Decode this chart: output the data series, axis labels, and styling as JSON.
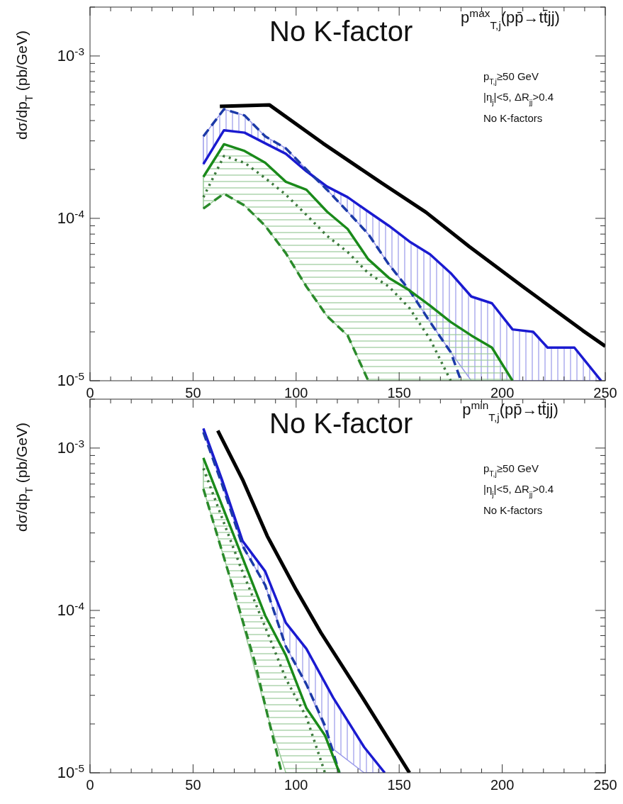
{
  "chart_data": [
    {
      "type": "line",
      "title": "p$^{max}$$_{T,j}$(pp̄→tt̄jj)",
      "ylabel": "dσ/dp$_{T}$ (pb/GeV)",
      "log": true,
      "grid": false,
      "annotations": [
        "No K-factor",
        "p$_{T,j}$≥50 GeV",
        "|η$_{j}$|<5, ΔR$_{jj}$>0.4",
        "No K-factors"
      ],
      "xlim": [
        0,
        250
      ],
      "ylim": [
        1e-05,
        0.002
      ],
      "xticks": [
        0,
        {
          "value": 10,
          "label": null
        },
        {
          "value": 20,
          "label": null
        },
        {
          "value": 30,
          "label": null
        },
        {
          "value": 40,
          "label": null
        },
        50,
        {
          "value": 60,
          "label": null
        },
        {
          "value": 70,
          "label": null
        },
        {
          "value": 80,
          "label": null
        },
        {
          "value": 90,
          "label": null
        },
        100,
        {
          "value": 110,
          "label": null
        },
        {
          "value": 120,
          "label": null
        },
        {
          "value": 130,
          "label": null
        },
        {
          "value": 140,
          "label": null
        },
        150,
        {
          "value": 160,
          "label": null
        },
        {
          "value": 170,
          "label": null
        },
        {
          "value": 180,
          "label": null
        },
        {
          "value": 190,
          "label": null
        },
        200,
        {
          "value": 210,
          "label": null
        },
        {
          "value": 220,
          "label": null
        },
        {
          "value": 230,
          "label": null
        },
        {
          "value": 240,
          "label": null
        },
        250
      ],
      "yticks": [
        {
          "value": 1e-05,
          "label": "10$^{-5}$"
        },
        {
          "value": 2e-05,
          "label": null
        },
        {
          "value": 3e-05,
          "label": null
        },
        {
          "value": 4e-05,
          "label": null
        },
        {
          "value": 5e-05,
          "label": null
        },
        {
          "value": 6e-05,
          "label": null
        },
        {
          "value": 7e-05,
          "label": null
        },
        {
          "value": 8e-05,
          "label": null
        },
        {
          "value": 9e-05,
          "label": null
        },
        {
          "value": 0.0001,
          "label": "10$^{-4}$"
        },
        {
          "value": 0.0002,
          "label": null
        },
        {
          "value": 0.0003,
          "label": null
        },
        {
          "value": 0.0004,
          "label": null
        },
        {
          "value": 0.0005,
          "label": null
        },
        {
          "value": 0.0006,
          "label": null
        },
        {
          "value": 0.0007,
          "label": null
        },
        {
          "value": 0.0008,
          "label": null
        },
        {
          "value": 0.0009,
          "label": null
        },
        {
          "value": 0.001,
          "label": "10$^{-3}$"
        },
        {
          "value": 0.002,
          "label": null
        }
      ],
      "series": [
        {
          "color": "#000000",
          "line_style": "solid",
          "x": [
            63,
            87,
            113,
            140,
            163,
            184,
            210,
            239,
            250
          ],
          "values": [
            0.00049,
            0.0005,
            0.00029,
            0.00017,
            0.000109,
            6.7e-05,
            3.8e-05,
            2.04e-05,
            1.63e-05
          ]
        },
        {
          "color": "#1a1ad0",
          "line_style": "solid",
          "x": [
            55,
            65,
            75,
            85,
            95,
            105,
            115,
            125,
            135,
            145,
            155,
            165,
            175,
            185,
            195,
            205,
            215,
            222,
            235,
            248
          ],
          "values": [
            0.000216,
            0.000349,
            0.000337,
            0.00029,
            0.00025,
            0.000195,
            0.000157,
            0.000135,
            0.00011,
            9e-05,
            7.2e-05,
            6e-05,
            4.6e-05,
            3.3e-05,
            3e-05,
            2.07e-05,
            2e-05,
            1.6e-05,
            1.6e-05,
            1e-05
          ],
          "lower": [
            0.000216,
            0.000349,
            0.000337,
            0.00029,
            0.00025,
            0.000195,
            0.00015,
            0.00011,
            8e-05,
            5.2e-05,
            3.6e-05,
            2.3e-05,
            1.5e-05,
            1e-05,
            1e-05,
            1e-05,
            1e-05,
            1e-05,
            1e-05,
            1e-05
          ],
          "upper": [
            0.00032,
            0.00047,
            0.00043,
            0.00032,
            0.00027,
            0.0002,
            0.000157,
            0.000135,
            0.00011,
            9e-05,
            7.2e-05,
            6e-05,
            4.6e-05,
            3.3e-05,
            3e-05,
            2.07e-05,
            2e-05,
            1.6e-05,
            1.6e-05,
            1e-05
          ]
        },
        {
          "color": "#1c3aa8",
          "line_style": "dashed",
          "x": [
            55,
            65,
            75,
            85,
            95,
            105,
            115,
            125,
            135,
            145,
            155,
            165,
            175,
            180
          ],
          "values": [
            0.00032,
            0.00047,
            0.00043,
            0.00032,
            0.00027,
            0.0002,
            0.00015,
            0.00011,
            8e-05,
            5.2e-05,
            3.6e-05,
            2.3e-05,
            1.5e-05,
            1e-05
          ]
        },
        {
          "color": "#1a8a1a",
          "line_style": "solid",
          "x": [
            55,
            65,
            75,
            85,
            95,
            105,
            115,
            125,
            135,
            145,
            155,
            165,
            175,
            185,
            195,
            205
          ],
          "values": [
            0.00018,
            0.000286,
            0.00026,
            0.00022,
            0.000168,
            0.00015,
            0.00011,
            8.6e-05,
            5.6e-05,
            4.3e-05,
            3.6e-05,
            2.9e-05,
            2.3e-05,
            1.9e-05,
            1.6e-05,
            1e-05
          ],
          "lower": [
            0.000115,
            0.000142,
            0.00012,
            9e-05,
            6.1e-05,
            3.8e-05,
            2.5e-05,
            1.9e-05,
            1e-05,
            1e-05,
            1e-05,
            1e-05,
            1e-05,
            1e-05,
            1e-05,
            1e-05
          ],
          "upper": [
            0.00018,
            0.000286,
            0.00026,
            0.00022,
            0.000168,
            0.00015,
            0.00011,
            8.6e-05,
            5.6e-05,
            4.3e-05,
            3.6e-05,
            2.9e-05,
            2.3e-05,
            1.9e-05,
            1.6e-05,
            1e-05
          ]
        },
        {
          "color": "#3d7a3d",
          "line_style": "dotted",
          "x": [
            55,
            65,
            75,
            85,
            95,
            105,
            115,
            125,
            135,
            145,
            155,
            165,
            175
          ],
          "values": [
            0.000135,
            0.000242,
            0.00022,
            0.000177,
            0.00014,
            0.000105,
            7.8e-05,
            6.2e-05,
            4.6e-05,
            3.8e-05,
            2.8e-05,
            1.8e-05,
            1e-05
          ]
        },
        {
          "color": "#2a8a2a",
          "line_style": "dashed",
          "x": [
            55,
            65,
            75,
            85,
            95,
            105,
            115,
            125,
            135
          ],
          "values": [
            0.000115,
            0.000142,
            0.00012,
            9e-05,
            6.1e-05,
            3.8e-05,
            2.5e-05,
            1.9e-05,
            1e-05
          ]
        }
      ]
    },
    {
      "type": "line",
      "title": "p$^{min}$$_{T,j}$(pp̄→tt̄jj)",
      "ylabel": "dσ/dp$_{T}$ (pb/GeV)",
      "log": true,
      "grid": false,
      "annotations": [
        "No K-factor",
        "p$_{T,j}$≥50 GeV",
        "|η$_{j}$|<5, ΔR$_{jj}$>0.4",
        "No K-factors"
      ],
      "xlim": [
        0,
        250
      ],
      "ylim": [
        1e-05,
        0.002
      ],
      "xticks": [
        0,
        {
          "value": 10,
          "label": null
        },
        {
          "value": 20,
          "label": null
        },
        {
          "value": 30,
          "label": null
        },
        {
          "value": 40,
          "label": null
        },
        50,
        {
          "value": 60,
          "label": null
        },
        {
          "value": 70,
          "label": null
        },
        {
          "value": 80,
          "label": null
        },
        {
          "value": 90,
          "label": null
        },
        100,
        {
          "value": 110,
          "label": null
        },
        {
          "value": 120,
          "label": null
        },
        {
          "value": 130,
          "label": null
        },
        {
          "value": 140,
          "label": null
        },
        150,
        {
          "value": 160,
          "label": null
        },
        {
          "value": 170,
          "label": null
        },
        {
          "value": 180,
          "label": null
        },
        {
          "value": 190,
          "label": null
        },
        200,
        {
          "value": 210,
          "label": null
        },
        {
          "value": 220,
          "label": null
        },
        {
          "value": 230,
          "label": null
        },
        {
          "value": 240,
          "label": null
        },
        250
      ],
      "yticks": [
        {
          "value": 1e-05,
          "label": "10$^{-5}$"
        },
        {
          "value": 2e-05,
          "label": null
        },
        {
          "value": 3e-05,
          "label": null
        },
        {
          "value": 4e-05,
          "label": null
        },
        {
          "value": 5e-05,
          "label": null
        },
        {
          "value": 6e-05,
          "label": null
        },
        {
          "value": 7e-05,
          "label": null
        },
        {
          "value": 8e-05,
          "label": null
        },
        {
          "value": 9e-05,
          "label": null
        },
        {
          "value": 0.0001,
          "label": "10$^{-4}$"
        },
        {
          "value": 0.0002,
          "label": null
        },
        {
          "value": 0.0003,
          "label": null
        },
        {
          "value": 0.0004,
          "label": null
        },
        {
          "value": 0.0005,
          "label": null
        },
        {
          "value": 0.0006,
          "label": null
        },
        {
          "value": 0.0007,
          "label": null
        },
        {
          "value": 0.0008,
          "label": null
        },
        {
          "value": 0.0009,
          "label": null
        },
        {
          "value": 0.001,
          "label": "10$^{-3}$"
        },
        {
          "value": 0.002,
          "label": null
        }
      ],
      "series": [
        {
          "color": "#000000",
          "line_style": "solid",
          "x": [
            62,
            74,
            86,
            100,
            112,
            133,
            155
          ],
          "values": [
            0.00128,
            0.00064,
            0.000287,
            0.000134,
            7.3e-05,
            2.8e-05,
            1e-05
          ]
        },
        {
          "color": "#1a1ad0",
          "line_style": "solid",
          "x": [
            55,
            64,
            74,
            85,
            95,
            105,
            118,
            133,
            143
          ],
          "values": [
            0.00132,
            0.00064,
            0.000268,
            0.000174,
            8.4e-05,
            5.8e-05,
            2.9e-05,
            1.44e-05,
            1e-05
          ],
          "lower": [
            0.00125,
            0.0006,
            0.00025,
            0.000143,
            6e-05,
            3.5e-05,
            1.4e-05,
            1e-05,
            1e-05
          ],
          "upper": [
            0.00132,
            0.00064,
            0.000268,
            0.000174,
            8.4e-05,
            5.8e-05,
            2.9e-05,
            1.44e-05,
            1e-05
          ]
        },
        {
          "color": "#1c3aa8",
          "line_style": "dashed",
          "x": [
            55,
            64,
            74,
            85,
            95,
            105,
            114,
            121
          ],
          "values": [
            0.00125,
            0.0006,
            0.00025,
            0.000143,
            6e-05,
            3.5e-05,
            1.95e-05,
            1e-05
          ]
        },
        {
          "color": "#1a8a1a",
          "line_style": "solid",
          "x": [
            55,
            69,
            85,
            95,
            105,
            114,
            121
          ],
          "values": [
            0.00087,
            0.000306,
            9.3e-05,
            5.3e-05,
            2.5e-05,
            1.7e-05,
            1e-05
          ],
          "lower": [
            0.00056,
            0.000143,
            2.5e-05,
            1e-05,
            1e-05,
            1e-05,
            1e-05
          ],
          "upper": [
            0.00087,
            0.000306,
            9.3e-05,
            5.3e-05,
            2.5e-05,
            1.7e-05,
            1e-05
          ]
        },
        {
          "color": "#3d7a3d",
          "line_style": "dotted",
          "x": [
            55,
            73,
            85,
            95,
            105,
            114
          ],
          "values": [
            0.00075,
            0.000186,
            7.9e-05,
            3.8e-05,
            2.2e-05,
            1e-05
          ]
        },
        {
          "color": "#2a8a2a",
          "line_style": "dashed",
          "x": [
            55,
            69,
            80,
            86,
            93
          ],
          "values": [
            0.00056,
            0.000143,
            4.8e-05,
            2.3e-05,
            1e-05
          ]
        }
      ]
    }
  ]
}
